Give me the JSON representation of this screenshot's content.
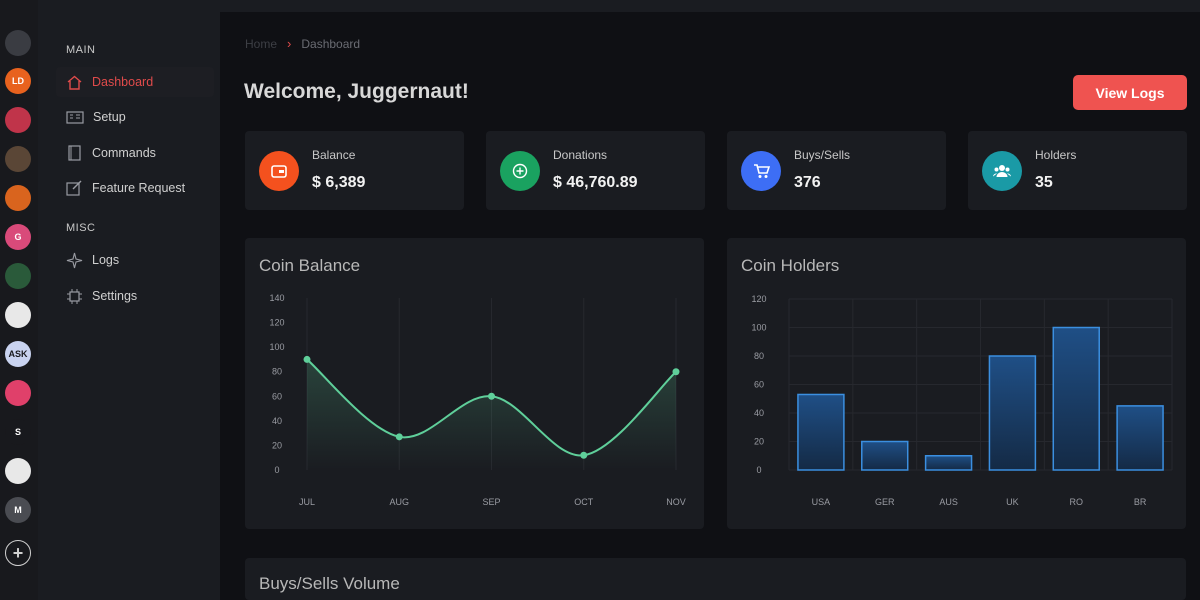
{
  "rail": {
    "icons": [
      {
        "name": "location-pin-icon",
        "bg": "#3a3c42",
        "text": ""
      },
      {
        "name": "server-icon-ld",
        "bg": "#e8621e",
        "text": "LD"
      },
      {
        "name": "server-icon-shield",
        "bg": "#c0344a",
        "text": ""
      },
      {
        "name": "server-icon-anime",
        "bg": "#5a4636",
        "text": ""
      },
      {
        "name": "server-icon-pumpkin",
        "bg": "#d9641e",
        "text": ""
      },
      {
        "name": "server-icon-g",
        "bg": "#d94a7a",
        "text": "G"
      },
      {
        "name": "server-icon-holiday",
        "bg": "#2a5a3a",
        "text": ""
      },
      {
        "name": "server-icon-coins",
        "bg": "#e8e8e8",
        "text": ""
      },
      {
        "name": "server-icon-ask",
        "bg": "#c9d3f0",
        "text": "ASK"
      },
      {
        "name": "server-icon-book",
        "bg": "#e0406a",
        "text": ""
      },
      {
        "name": "server-icon-s",
        "bg": "#18191d",
        "text": "S"
      },
      {
        "name": "server-icon-disc",
        "bg": "#e8e8e8",
        "text": ""
      },
      {
        "name": "server-icon-m",
        "bg": "#4a4c52",
        "text": "M"
      }
    ]
  },
  "sidebar": {
    "section_main": "MAIN",
    "section_misc": "MISC",
    "items": [
      {
        "label": "Dashboard"
      },
      {
        "label": "Setup"
      },
      {
        "label": "Commands"
      },
      {
        "label": "Feature Request"
      },
      {
        "label": "Logs"
      },
      {
        "label": "Settings"
      }
    ]
  },
  "breadcrumb": {
    "home": "Home",
    "separator": "›",
    "current": "Dashboard"
  },
  "header": {
    "welcome": "Welcome, Juggernaut!",
    "view_logs": "View Logs"
  },
  "stats": [
    {
      "label": "Balance",
      "value": "$ 6,389",
      "color": "#f4511e"
    },
    {
      "label": "Donations",
      "value": "$ 46,760.89",
      "color": "#1aa260"
    },
    {
      "label": "Buys/Sells",
      "value": "376",
      "color": "#3d6ef5"
    },
    {
      "label": "Holders",
      "value": "35",
      "color": "#1a9aa6"
    }
  ],
  "panels": {
    "coin_balance": "Coin Balance",
    "coin_holders": "Coin Holders",
    "volume": "Buys/Sells Volume"
  },
  "chart_data": [
    {
      "type": "line",
      "title": "Coin Balance",
      "categories": [
        "JUL",
        "AUG",
        "SEP",
        "OCT",
        "NOV"
      ],
      "values": [
        90,
        27,
        60,
        12,
        80
      ],
      "yticks": [
        0,
        20,
        40,
        60,
        80,
        100,
        120,
        140
      ],
      "ylim": [
        0,
        140
      ],
      "color": "#5fcf9a"
    },
    {
      "type": "bar",
      "title": "Coin Holders",
      "categories": [
        "USA",
        "GER",
        "AUS",
        "UK",
        "RO",
        "BR"
      ],
      "values": [
        53,
        20,
        10,
        80,
        100,
        45
      ],
      "yticks": [
        0,
        20,
        40,
        60,
        80,
        100,
        120
      ],
      "ytick_labels": [
        "0",
        "20",
        "40",
        "60",
        "80",
        "100",
        "120"
      ],
      "ylim": [
        0,
        120
      ],
      "color": "#3b8fe0"
    }
  ]
}
